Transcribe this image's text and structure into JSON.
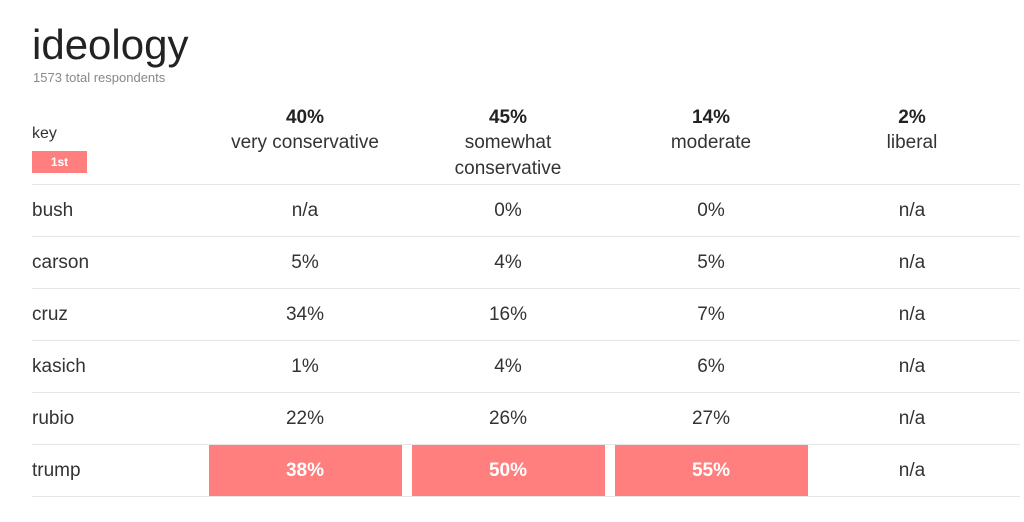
{
  "title": "ideology",
  "subtitle": "1573 total respondents",
  "key": {
    "label": "key",
    "badge": "1st"
  },
  "colors": {
    "winner": "#ff7f7f",
    "divider": "#e6e6e6"
  },
  "chart_data": {
    "type": "table",
    "title": "ideology",
    "subtitle": "1573 total respondents",
    "columns": [
      {
        "share": "40%",
        "label": "very conservative"
      },
      {
        "share": "45%",
        "label": "somewhat conservative"
      },
      {
        "share": "14%",
        "label": "moderate"
      },
      {
        "share": "2%",
        "label": "liberal"
      }
    ],
    "rows": [
      {
        "name": "bush",
        "values": [
          "n/a",
          "0%",
          "0%",
          "n/a"
        ],
        "winners": [
          false,
          false,
          false,
          false
        ]
      },
      {
        "name": "carson",
        "values": [
          "5%",
          "4%",
          "5%",
          "n/a"
        ],
        "winners": [
          false,
          false,
          false,
          false
        ]
      },
      {
        "name": "cruz",
        "values": [
          "34%",
          "16%",
          "7%",
          "n/a"
        ],
        "winners": [
          false,
          false,
          false,
          false
        ]
      },
      {
        "name": "kasich",
        "values": [
          "1%",
          "4%",
          "6%",
          "n/a"
        ],
        "winners": [
          false,
          false,
          false,
          false
        ]
      },
      {
        "name": "rubio",
        "values": [
          "22%",
          "26%",
          "27%",
          "n/a"
        ],
        "winners": [
          false,
          false,
          false,
          false
        ]
      },
      {
        "name": "trump",
        "values": [
          "38%",
          "50%",
          "55%",
          "n/a"
        ],
        "winners": [
          true,
          true,
          true,
          false
        ]
      }
    ]
  }
}
